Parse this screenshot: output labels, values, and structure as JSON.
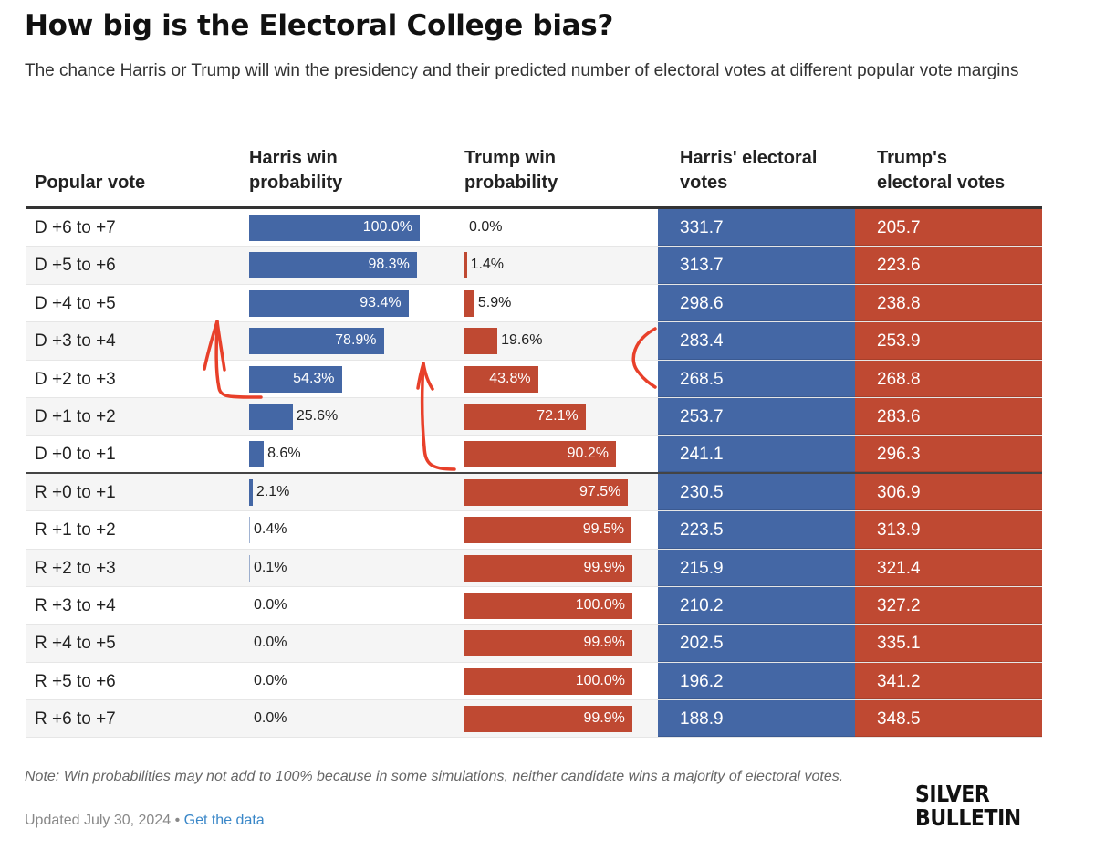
{
  "title": "How big is the Electoral College bias?",
  "subtitle": "The chance Harris or Trump will win the presidency and their predicted number of electoral votes at different popular vote margins",
  "colors": {
    "harris": "#4467a5",
    "trump": "#bf4932",
    "link": "#3a87c8"
  },
  "headers": {
    "popular_vote": "Popular vote",
    "harris_win_line1": "Harris win",
    "harris_win_line2": "probability",
    "trump_win_line1": "Trump win",
    "trump_win_line2": "probability",
    "harris_ev_line1": "Harris' electoral",
    "harris_ev_line2": "votes",
    "trump_ev_line1": "Trump's",
    "trump_ev_line2": "electoral votes"
  },
  "chart_data": {
    "type": "table",
    "title": "How big is the Electoral College bias?",
    "columns": [
      "Popular vote",
      "Harris win probability",
      "Trump win probability",
      "Harris' electoral votes",
      "Trump's electoral votes"
    ],
    "rows": [
      {
        "margin": "D +6 to +7",
        "harris_win": 100.0,
        "trump_win": 0.0,
        "harris_ev": 331.7,
        "trump_ev": 205.7
      },
      {
        "margin": "D +5 to +6",
        "harris_win": 98.3,
        "trump_win": 1.4,
        "harris_ev": 313.7,
        "trump_ev": 223.6
      },
      {
        "margin": "D +4 to +5",
        "harris_win": 93.4,
        "trump_win": 5.9,
        "harris_ev": 298.6,
        "trump_ev": 238.8
      },
      {
        "margin": "D +3 to +4",
        "harris_win": 78.9,
        "trump_win": 19.6,
        "harris_ev": 283.4,
        "trump_ev": 253.9
      },
      {
        "margin": "D +2 to +3",
        "harris_win": 54.3,
        "trump_win": 43.8,
        "harris_ev": 268.5,
        "trump_ev": 268.8
      },
      {
        "margin": "D +1 to +2",
        "harris_win": 25.6,
        "trump_win": 72.1,
        "harris_ev": 253.7,
        "trump_ev": 283.6
      },
      {
        "margin": "D +0 to +1",
        "harris_win": 8.6,
        "trump_win": 90.2,
        "harris_ev": 241.1,
        "trump_ev": 296.3
      },
      {
        "margin": "R +0 to +1",
        "harris_win": 2.1,
        "trump_win": 97.5,
        "harris_ev": 230.5,
        "trump_ev": 306.9
      },
      {
        "margin": "R +1 to +2",
        "harris_win": 0.4,
        "trump_win": 99.5,
        "harris_ev": 223.5,
        "trump_ev": 313.9
      },
      {
        "margin": "R +2 to +3",
        "harris_win": 0.1,
        "trump_win": 99.9,
        "harris_ev": 215.9,
        "trump_ev": 321.4
      },
      {
        "margin": "R +3 to +4",
        "harris_win": 0.0,
        "trump_win": 100.0,
        "harris_ev": 210.2,
        "trump_ev": 327.2
      },
      {
        "margin": "R +4 to +5",
        "harris_win": 0.0,
        "trump_win": 99.9,
        "harris_ev": 202.5,
        "trump_ev": 335.1
      },
      {
        "margin": "R +5 to +6",
        "harris_win": 0.0,
        "trump_win": 100.0,
        "harris_ev": 196.2,
        "trump_ev": 341.2
      },
      {
        "margin": "R +6 to +7",
        "harris_win": 0.0,
        "trump_win": 99.9,
        "harris_ev": 188.9,
        "trump_ev": 348.5
      }
    ],
    "win_prob_range": [
      0,
      100
    ],
    "divider_after": "D +0 to +1"
  },
  "footer": {
    "note": "Note: Win probabilities may not add to 100% because in some simulations, neither candidate wins a majority of electoral votes.",
    "updated": "Updated July 30, 2024",
    "separator": " • ",
    "get_data_link": "Get the data",
    "logo_line1": "SILVER",
    "logo_line2": "BULLETIN"
  }
}
